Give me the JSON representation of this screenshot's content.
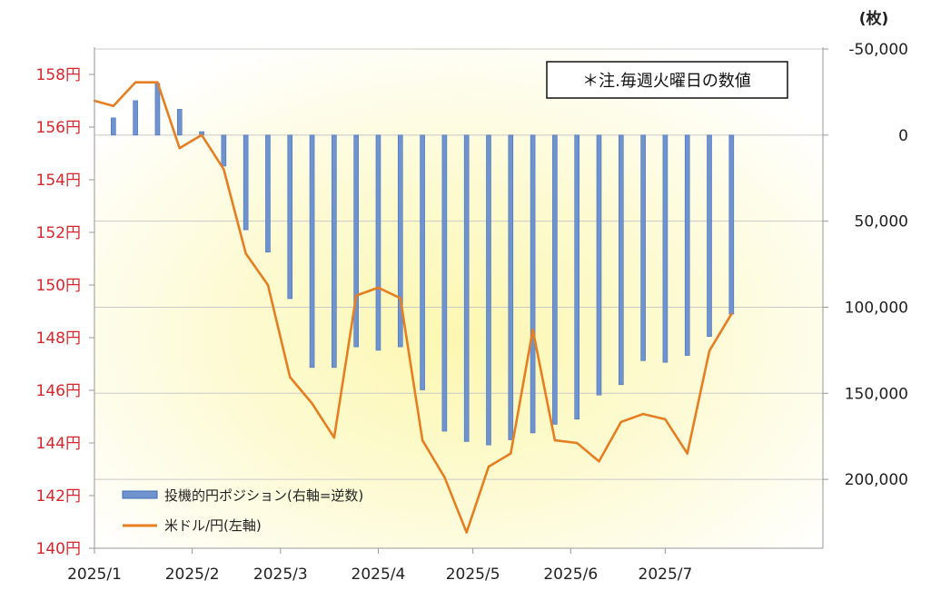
{
  "chart_data": {
    "type": "bar+line",
    "note": "＊注.毎週火曜日の数値",
    "y_left": {
      "ticks": [
        "140円",
        "142円",
        "144円",
        "146円",
        "148円",
        "150円",
        "152円",
        "154円",
        "156円",
        "158円"
      ],
      "range": [
        140,
        158
      ]
    },
    "y_right": {
      "unit_label": "(枚)",
      "ticks": [
        "-50,000",
        "0",
        "50,000",
        "100,000",
        "150,000",
        "200,000"
      ],
      "range_inverted": [
        -50000,
        240000
      ]
    },
    "x_ticks": [
      "2025/1",
      "2025/2",
      "2025/3",
      "2025/4",
      "2025/5",
      "2025/6",
      "2025/7"
    ],
    "x_tick_dates": [
      "2025-01-01",
      "2025-02-01",
      "2025-03-01",
      "2025-04-01",
      "2025-05-01",
      "2025-06-01",
      "2025-07-01"
    ],
    "x_range": [
      "2025-01-01",
      "2025-08-20"
    ],
    "weeks": [
      "2025-01-07",
      "2025-01-14",
      "2025-01-21",
      "2025-01-28",
      "2025-02-04",
      "2025-02-11",
      "2025-02-18",
      "2025-02-25",
      "2025-03-04",
      "2025-03-11",
      "2025-03-18",
      "2025-03-25",
      "2025-04-01",
      "2025-04-08",
      "2025-04-15",
      "2025-04-22",
      "2025-04-29",
      "2025-05-06",
      "2025-05-13",
      "2025-05-20",
      "2025-05-27",
      "2025-06-03",
      "2025-06-10",
      "2025-06-17",
      "2025-06-24",
      "2025-07-01",
      "2025-07-08",
      "2025-07-15",
      "2025-07-22",
      "2025-07-29",
      "2025-08-05"
    ],
    "series": [
      {
        "name": "投機的円ポジション(右軸=逆数)",
        "type": "bar",
        "axis": "right",
        "color": "#6f93cf",
        "values": [
          -10000,
          -20000,
          -30000,
          -15000,
          -2000,
          18000,
          55000,
          68000,
          95000,
          135000,
          135000,
          123000,
          125000,
          123000,
          148000,
          172000,
          178000,
          180000,
          177000,
          173000,
          168000,
          165000,
          151000,
          145000,
          131000,
          132000,
          128000,
          117000,
          104000
        ]
      },
      {
        "name": "米ドル/円(左軸)",
        "type": "line",
        "axis": "left",
        "color": "#e67e22",
        "values": [
          157.0,
          156.8,
          157.7,
          157.7,
          155.2,
          155.7,
          154.4,
          151.2,
          150.0,
          146.5,
          145.5,
          144.2,
          149.6,
          149.9,
          149.5,
          144.1,
          142.7,
          140.6,
          143.1,
          143.6,
          148.3,
          144.1,
          144.0,
          143.3,
          144.8,
          145.1,
          144.9,
          143.6,
          147.5,
          148.9
        ]
      }
    ],
    "legend_position": "bottom-left",
    "grid": "horizontal",
    "background": "yellow radial gradient"
  }
}
